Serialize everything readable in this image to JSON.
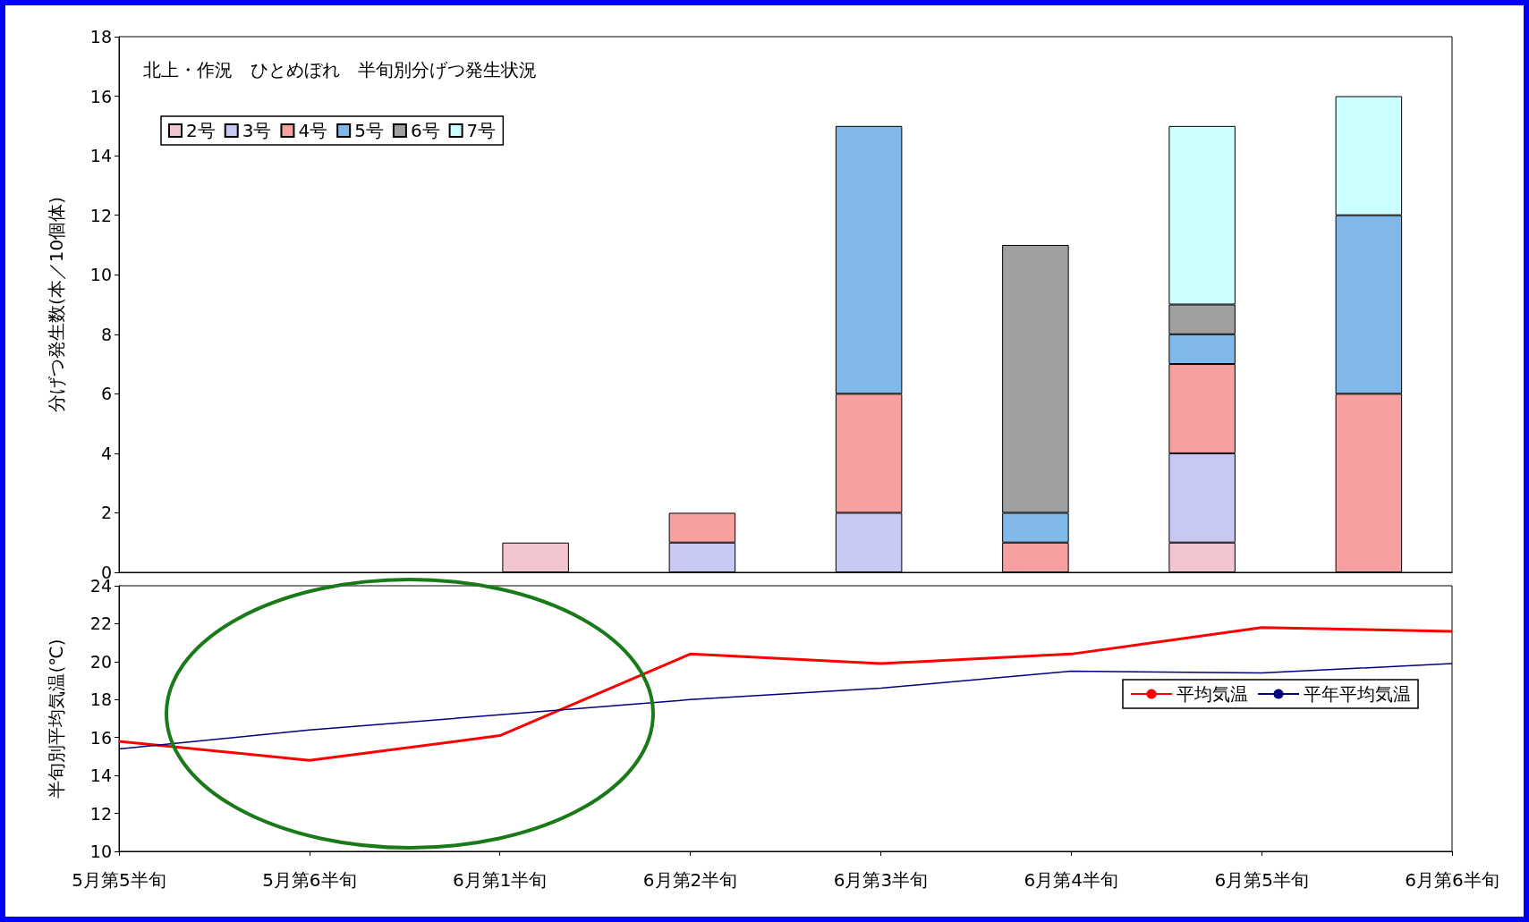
{
  "chart_data": [
    {
      "type": "bar",
      "title": "北上・作況　ひとめぼれ　半旬別分げつ発生状況",
      "ylabel": "分げつ発生数(本／10個体)",
      "categories": [
        null,
        null,
        null,
        null,
        null,
        null,
        null,
        null
      ],
      "stacked": true,
      "ylim": [
        0,
        18
      ],
      "yticks": [
        0,
        2,
        4,
        6,
        8,
        10,
        12,
        14,
        16,
        18
      ],
      "tick_labels": "y",
      "grid": false,
      "legend": "top left",
      "series": [
        {
          "name": "2号",
          "color": "#f2c4d0",
          "values": [
            null,
            null,
            1,
            null,
            null,
            null,
            1,
            null
          ]
        },
        {
          "name": "3号",
          "color": "#c8c8f4",
          "values": [
            null,
            null,
            null,
            1,
            2,
            null,
            3,
            null
          ]
        },
        {
          "name": "4号",
          "color": "#f7a0a0",
          "values": [
            null,
            null,
            null,
            1,
            4,
            1,
            3,
            6
          ]
        },
        {
          "name": "5号",
          "color": "#80b8ea",
          "values": [
            null,
            null,
            null,
            null,
            9,
            1,
            1,
            6
          ]
        },
        {
          "name": "6号",
          "color": "#a0a0a0",
          "values": [
            null,
            null,
            null,
            null,
            null,
            9,
            1,
            null
          ]
        },
        {
          "name": "7号",
          "color": "#ccffff",
          "values": [
            null,
            null,
            null,
            null,
            null,
            null,
            6,
            4
          ]
        }
      ]
    },
    {
      "type": "line",
      "ylabel": "半旬別平均気温(℃)",
      "categories": [
        "5月第5半旬",
        "5月第6半旬",
        "6月第1半旬",
        "6月第2半旬",
        "6月第3半旬",
        "6月第4半旬",
        "6月第5半旬",
        "6月第6半旬"
      ],
      "ylim": [
        10,
        24
      ],
      "yticks": [
        10,
        12,
        14,
        16,
        18,
        20,
        22,
        24
      ],
      "grid": false,
      "legend": "right",
      "marker": "none",
      "series": [
        {
          "name": "平均気温",
          "color": "#ff0000",
          "values": [
            15.8,
            14.8,
            16.1,
            20.4,
            19.9,
            20.4,
            21.8,
            21.6
          ]
        },
        {
          "name": "平年平均気温",
          "color": "#000080",
          "values": [
            15.4,
            16.4,
            17.2,
            18.0,
            18.6,
            19.5,
            19.4,
            19.9
          ]
        }
      ]
    }
  ]
}
